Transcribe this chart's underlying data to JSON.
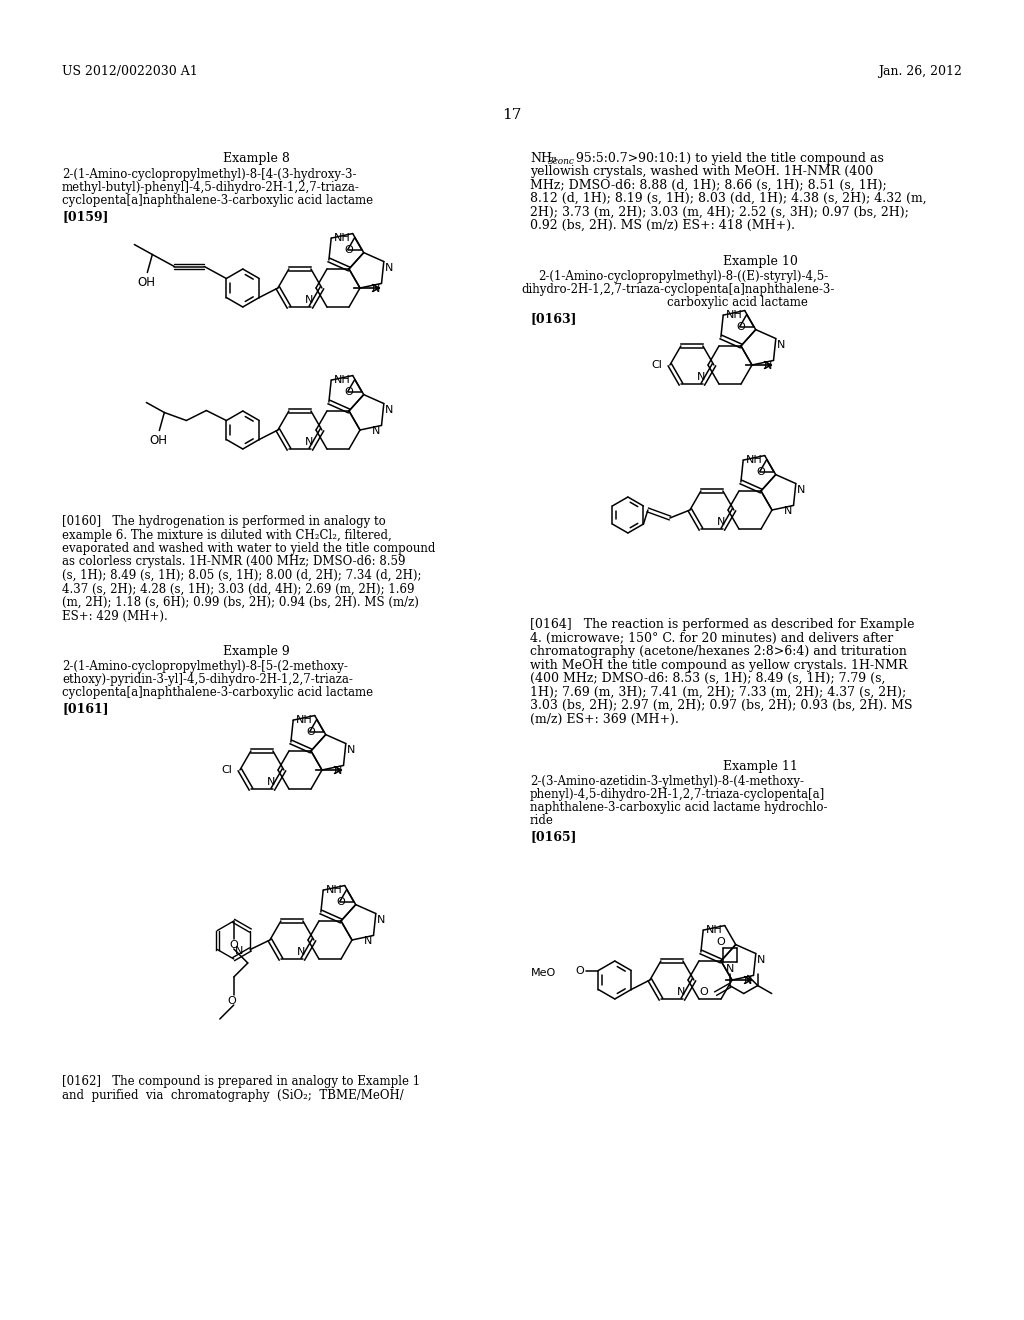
{
  "page_number": "17",
  "header_left": "US 2012/0022030 A1",
  "header_right": "Jan. 26, 2012",
  "background_color": "#ffffff",
  "ex8_title": "Example 8",
  "ex8_name_lines": [
    "2-(1-Amino-cyclopropylmethyl)-8-[4-(3-hydroxy-3-",
    "methyl-butyl)-phenyl]-4,5-dihydro-2H-1,2,7-triaza-",
    "cyclopenta[a]naphthalene-3-carboxylic acid lactame"
  ],
  "ex8_ref": "[0159]",
  "ex8_rtext_lines": [
    "NH₃ᶜᵒⁿᶜ 95:5:0.7>90:10:1) to yield the title compound as",
    "yellowish crystals, washed with MeOH. 1H-NMR (400",
    "MHz; DMSO-d6: 8.88 (d, 1H); 8.66 (s, 1H); 8.51 (s, 1H);",
    "8.12 (d, 1H); 8.19 (s, 1H); 8.03 (dd, 1H); 4.38 (s, 2H); 4.32 (m,",
    "2H); 3.73 (m, 2H); 3.03 (m, 4H); 2.52 (s, 3H); 0.97 (bs, 2H);",
    "0.92 (bs, 2H). MS (m/z) ES+: 418 (MH+)."
  ],
  "ex10_title": "Example 10",
  "ex10_name_lines": [
    "2-(1-Amino-cyclopropylmethyl)-8-((E)-styryl)-4,5-",
    "dihydro-2H-1,2,7-triaza-cyclopenta[a]naphthalene-3-",
    "carboxylic acid lactame"
  ],
  "ex10_ref": "[0163]",
  "ex10_text_lines": [
    "[0164]   The reaction is performed as described for Example",
    "4. (microwave; 150° C. for 20 minutes) and delivers after",
    "chromatography (acetone/hexanes 2:8>6:4) and trituration",
    "with MeOH the title compound as yellow crystals. 1H-NMR",
    "(400 MHz; DMSO-d6: 8.53 (s, 1H); 8.49 (s, 1H); 7.79 (s,",
    "1H); 7.69 (m, 3H); 7.41 (m, 2H); 7.33 (m, 2H); 4.37 (s, 2H);",
    "3.03 (bs, 2H); 2.97 (m, 2H); 0.97 (bs, 2H); 0.93 (bs, 2H). MS",
    "(m/z) ES+: 369 (MH+)."
  ],
  "ex9_title": "Example 9",
  "ex9_name_lines": [
    "2-(1-Amino-cyclopropylmethyl)-8-[5-(2-methoxy-",
    "ethoxy)-pyridin-3-yl]-4,5-dihydro-2H-1,2,7-triaza-",
    "cyclopenta[a]naphthalene-3-carboxylic acid lactame"
  ],
  "ex9_ref": "[0161]",
  "ex9_text_lines": [
    "[0162]   The compound is prepared in analogy to Example 1",
    "and  purified  via  chromatography  (SiO₂;  TBME/MeOH/"
  ],
  "ex0160_text_lines": [
    "[0160]   The hydrogenation is performed in analogy to",
    "example 6. The mixture is diluted with CH₂Cl₂, filtered,",
    "evaporated and washed with water to yield the title compound",
    "as colorless crystals. 1H-NMR (400 MHz; DMSO-d6: 8.59",
    "(s, 1H); 8.49 (s, 1H); 8.05 (s, 1H); 8.00 (d, 2H); 7.34 (d, 2H);",
    "4.37 (s, 2H); 4.28 (s, 1H); 3.03 (dd, 4H); 2.69 (m, 2H); 1.69",
    "(m, 2H); 1.18 (s, 6H); 0.99 (bs, 2H); 0.94 (bs, 2H). MS (m/z)",
    "ES+: 429 (MH+)."
  ],
  "ex11_title": "Example 11",
  "ex11_name_lines": [
    "2-(3-Amino-azetidin-3-ylmethyl)-8-(4-methoxy-",
    "phenyl)-4,5-dihydro-2H-1,2,7-triaza-cyclopenta[a]",
    "naphthalene-3-carboxylic acid lactame hydrochlo-",
    "ride"
  ],
  "ex11_ref": "[0165]"
}
